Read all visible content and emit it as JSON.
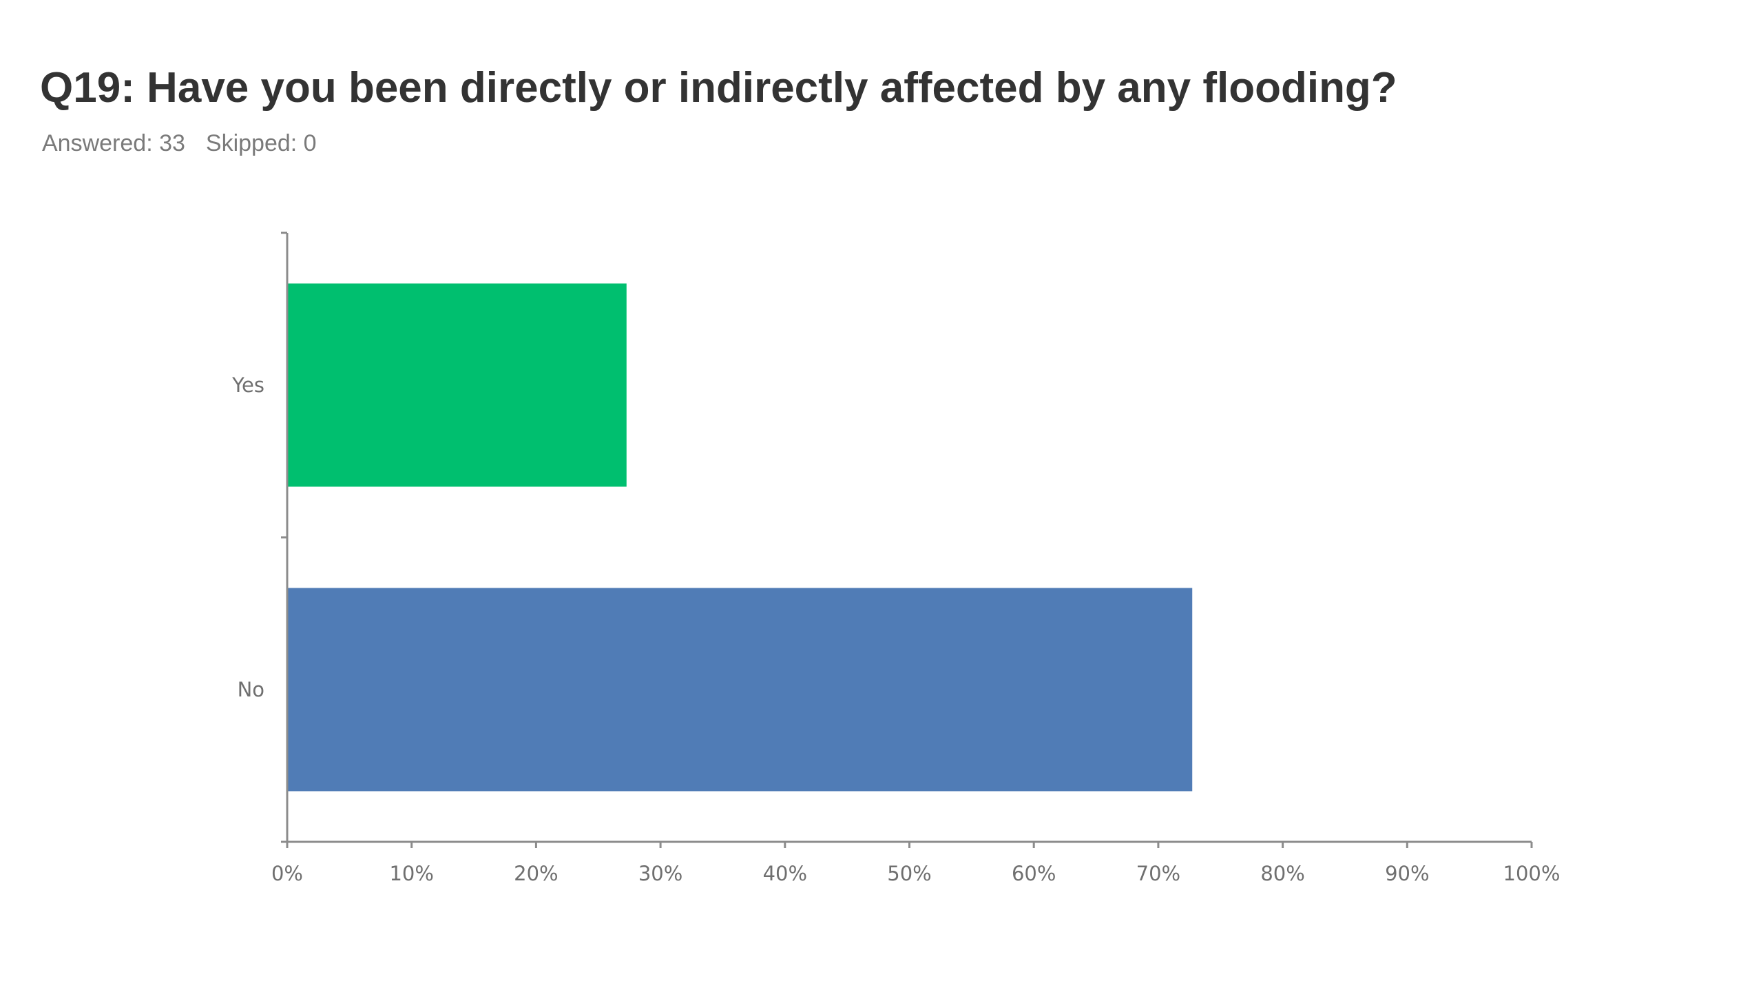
{
  "question": {
    "title": "Q19: Have you been directly or indirectly affected by any flooding?",
    "answered_label": "Answered: 33",
    "skipped_label": "Skipped: 0"
  },
  "colors": {
    "yes_bar": "#00BF6F",
    "no_bar": "#507CB6",
    "axis": "#8c8c8c",
    "text": "#6f6f6f"
  },
  "chart_data": {
    "type": "bar",
    "orientation": "horizontal",
    "categories": [
      "Yes",
      "No"
    ],
    "values": [
      27.27,
      72.73
    ],
    "value_unit": "%",
    "xlim": [
      0,
      100
    ],
    "xticks": [
      "0%",
      "10%",
      "20%",
      "30%",
      "40%",
      "50%",
      "60%",
      "70%",
      "80%",
      "90%",
      "100%"
    ],
    "grid": false,
    "legend": "none"
  }
}
